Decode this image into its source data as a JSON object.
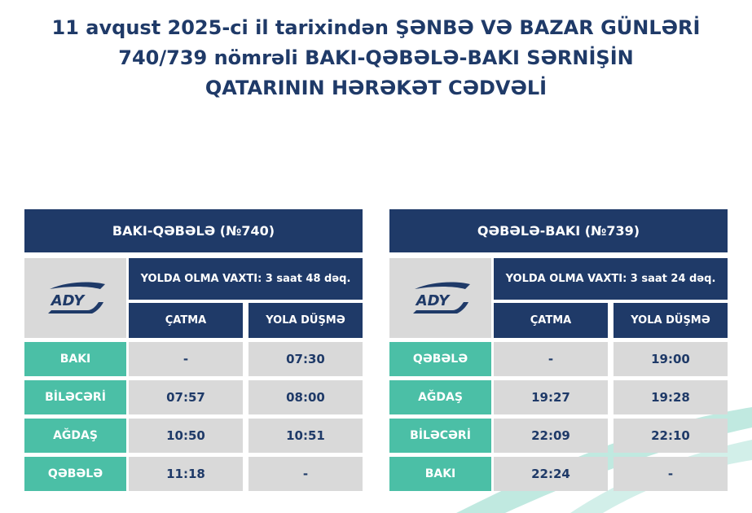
{
  "title": [
    "11 avqust 2025-ci il tarixindən ŞƏNBƏ VƏ BAZAR GÜNLƏRİ",
    "740/739 nömrəli BAKI-QƏBƏLƏ-BAKI SƏRNİŞİN",
    "QATARININ HƏRƏKƏT CƏDVƏLİ"
  ],
  "logo": "ADY",
  "tables": [
    {
      "title": "BAKI-QƏBƏLƏ (№740)",
      "travel_time": "YOLDA OLMA VAXTI: 3 saat 48 dəq.",
      "columns": [
        "ÇATMA",
        "YOLA DÜŞMƏ"
      ],
      "rows": [
        [
          "BAKI",
          "-",
          "07:30"
        ],
        [
          "BİLƏCƏRİ",
          "07:57",
          "08:00"
        ],
        [
          "AĞDAŞ",
          "10:50",
          "10:51"
        ],
        [
          "QƏBƏLƏ",
          "11:18",
          "-"
        ]
      ]
    },
    {
      "title": "QƏBƏLƏ-BAKI (№739)",
      "travel_time": "YOLDA OLMA VAXTI: 3 saat 24 dəq.",
      "columns": [
        "ÇATMA",
        "YOLA DÜŞMƏ"
      ],
      "rows": [
        [
          "QƏBƏLƏ",
          "-",
          "19:00"
        ],
        [
          "AĞDAŞ",
          "19:27",
          "19:28"
        ],
        [
          "BİLƏCƏRİ",
          "22:09",
          "22:10"
        ],
        [
          "BAKI",
          "22:24",
          "-"
        ]
      ]
    }
  ]
}
